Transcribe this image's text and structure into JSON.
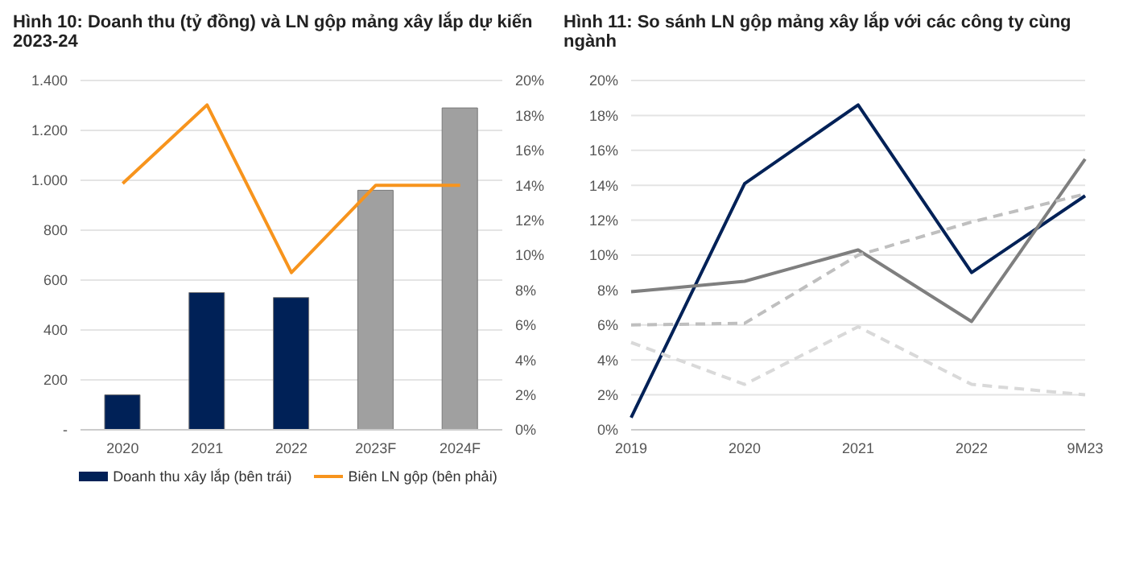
{
  "chart_data": [
    {
      "type": "bar",
      "title": "Hình 10: Doanh thu (tỷ đồng) và LN gộp mảng xây lắp dự kiến 2023-24",
      "categories": [
        "2020",
        "2021",
        "2022",
        "2023F",
        "2024F"
      ],
      "series": [
        {
          "name": "Doanh thu xây lắp (bên trái)",
          "type": "bar",
          "color": "#002157",
          "colors": [
            "#002157",
            "#002157",
            "#002157",
            "#a0a0a0",
            "#a0a0a0"
          ],
          "values": [
            140,
            550,
            530,
            960,
            1290
          ]
        },
        {
          "name": "Biên LN gộp (bên phải)",
          "type": "line",
          "axis": "y2",
          "color": "#f7941d",
          "values": [
            14.1,
            18.6,
            9.0,
            14.0,
            14.0
          ]
        }
      ],
      "ylim": [
        0,
        1400
      ],
      "yticks": [
        {
          "value": 0,
          "label": "-"
        },
        200,
        400,
        600,
        800,
        {
          "value": 1000,
          "label": "1.000"
        },
        {
          "value": 1200,
          "label": "1.200"
        },
        {
          "value": 1400,
          "label": "1.400"
        }
      ],
      "y2lim": [
        0,
        20
      ],
      "y2ticks": [
        {
          "value": 0,
          "label": "0%"
        },
        {
          "value": 2,
          "label": "2%"
        },
        {
          "value": 4,
          "label": "4%"
        },
        {
          "value": 6,
          "label": "6%"
        },
        {
          "value": 8,
          "label": "8%"
        },
        {
          "value": 10,
          "label": "10%"
        },
        {
          "value": 12,
          "label": "12%"
        },
        {
          "value": 14,
          "label": "14%"
        },
        {
          "value": 16,
          "label": "16%"
        },
        {
          "value": 18,
          "label": "18%"
        },
        {
          "value": 20,
          "label": "20%"
        }
      ],
      "grid": "y",
      "legend": "bottom"
    },
    {
      "type": "line",
      "title": "Hình 11: So sánh LN gộp mảng xây lắp với các công ty cùng ngành",
      "categories": [
        "2019",
        "2020",
        "2021",
        "2022",
        "9M23"
      ],
      "series": [
        {
          "color": "#002157",
          "values": [
            0.7,
            14.1,
            18.6,
            9.0,
            13.4
          ]
        },
        {
          "color": "#7f7f7f",
          "values": [
            7.9,
            8.5,
            10.3,
            6.2,
            15.5
          ]
        },
        {
          "color": "#bfbfbf",
          "line_style": "dashed",
          "values": [
            6.0,
            6.1,
            10.0,
            11.9,
            13.5
          ]
        },
        {
          "color": "#d9d9d9",
          "line_style": "dashed",
          "values": [
            5.0,
            2.6,
            5.9,
            2.6,
            2.0
          ]
        }
      ],
      "ylim": [
        0,
        20
      ],
      "yticks": [
        {
          "value": 0,
          "label": "0%"
        },
        {
          "value": 2,
          "label": "2%"
        },
        {
          "value": 4,
          "label": "4%"
        },
        {
          "value": 6,
          "label": "6%"
        },
        {
          "value": 8,
          "label": "8%"
        },
        {
          "value": 10,
          "label": "10%"
        },
        {
          "value": 12,
          "label": "12%"
        },
        {
          "value": 14,
          "label": "14%"
        },
        {
          "value": 16,
          "label": "16%"
        },
        {
          "value": 18,
          "label": "18%"
        },
        {
          "value": 20,
          "label": "20%"
        }
      ],
      "grid": "y"
    }
  ]
}
